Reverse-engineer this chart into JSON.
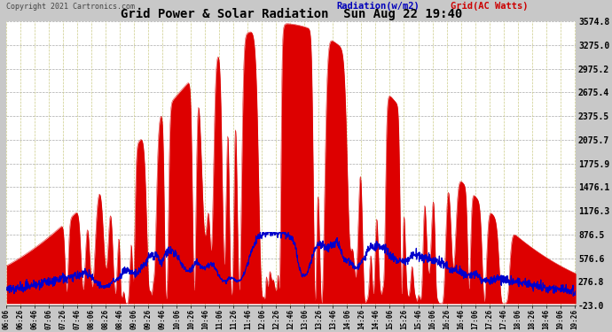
{
  "title": "Grid Power & Solar Radiation  Sun Aug 22 19:40",
  "copyright": "Copyright 2021 Cartronics.com",
  "legend_radiation": "Radiation(w/m2)",
  "legend_grid": "Grid(AC Watts)",
  "ylabel_right_ticks": [
    3574.8,
    3275.0,
    2975.2,
    2675.4,
    2375.5,
    2075.7,
    1775.9,
    1476.1,
    1176.3,
    876.5,
    576.6,
    276.8,
    -23.0
  ],
  "ymin": -23.0,
  "ymax": 3574.8,
  "fig_bg_color": "#c8c8c8",
  "plot_bg_color": "#ffffff",
  "bar_color": "#dd0000",
  "line_color": "#0000cc",
  "grid_color_h": "#aaaaaa",
  "grid_color_v": "#cccc88",
  "title_color": "#000000",
  "radiation_label_color": "#0000bb",
  "grid_label_color": "#cc0000",
  "total_minutes": 802,
  "mid_minute": 390,
  "sigma_minutes": 195,
  "grid_max": 3550,
  "radiation_max_scaled": 900,
  "num_spikes": 60,
  "num_rad_dips": 30
}
